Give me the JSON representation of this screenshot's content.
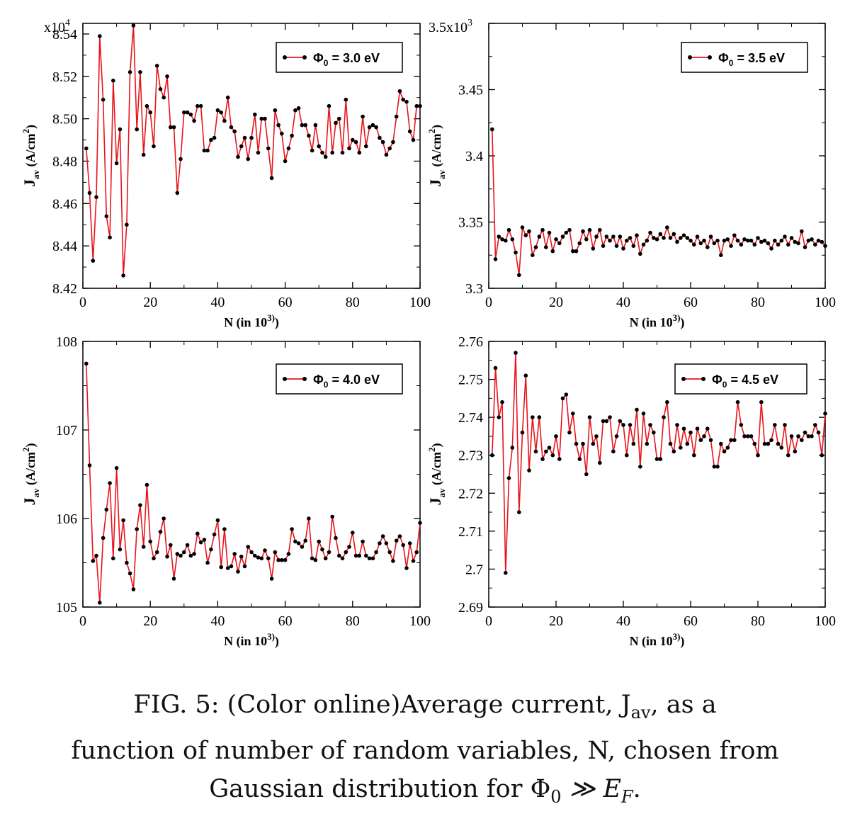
{
  "caption": {
    "line1": "FIG. 5: (Color online)Average current, J",
    "line1_sub": "av",
    "line1_end": ", as a",
    "line2": "function of number of random variables, N, chosen from",
    "line3": "Gaussian distribution for Φ",
    "line3_sub": "0",
    "line3_end": " ≫ E",
    "line3_sub2": "F",
    "line3_tail": "."
  },
  "colors": {
    "line": "#e8141b",
    "marker": "#000000",
    "frame": "#000000"
  },
  "chart_data": [
    {
      "type": "line",
      "legend": "Φ0 = 3.0 eV",
      "legend_position": "top-right",
      "xlabel": "N (in 10^3)",
      "ylabel": "Jav (A/cm^2)",
      "y_multiplier": "x10^4",
      "xlim": [
        0,
        100
      ],
      "ylim": [
        8.42,
        8.545
      ],
      "xticks": [
        "0",
        "20",
        "40",
        "60",
        "80",
        "100"
      ],
      "yticks": [
        "8.42",
        "8.44",
        "8.46",
        "8.48",
        "8.50",
        "8.52",
        "8.54"
      ],
      "x": [
        1,
        2,
        3,
        4,
        5,
        6,
        7,
        8,
        9,
        10,
        11,
        12,
        13,
        14,
        15,
        16,
        17,
        18,
        19,
        20,
        21,
        22,
        23,
        24,
        25,
        26,
        27,
        28,
        29,
        30,
        31,
        32,
        33,
        34,
        35,
        36,
        37,
        38,
        39,
        40,
        41,
        42,
        43,
        44,
        45,
        46,
        47,
        48,
        49,
        50,
        51,
        52,
        53,
        54,
        55,
        56,
        57,
        58,
        59,
        60,
        61,
        62,
        63,
        64,
        65,
        66,
        67,
        68,
        69,
        70,
        71,
        72,
        73,
        74,
        75,
        76,
        77,
        78,
        79,
        80,
        81,
        82,
        83,
        84,
        85,
        86,
        87,
        88,
        89,
        90,
        91,
        92,
        93,
        94,
        95,
        96,
        97,
        98,
        99,
        100
      ],
      "y": [
        8.486,
        8.465,
        8.433,
        8.463,
        8.539,
        8.509,
        8.454,
        8.444,
        8.518,
        8.479,
        8.495,
        8.426,
        8.45,
        8.522,
        8.544,
        8.495,
        8.522,
        8.483,
        8.506,
        8.503,
        8.487,
        8.525,
        8.514,
        8.51,
        8.52,
        8.496,
        8.496,
        8.465,
        8.481,
        8.503,
        8.503,
        8.502,
        8.499,
        8.506,
        8.506,
        8.485,
        8.485,
        8.49,
        8.491,
        8.504,
        8.503,
        8.499,
        8.51,
        8.496,
        8.494,
        8.482,
        8.487,
        8.491,
        8.481,
        8.491,
        8.502,
        8.484,
        8.5,
        8.5,
        8.486,
        8.472,
        8.504,
        8.497,
        8.493,
        8.48,
        8.486,
        8.492,
        8.504,
        8.505,
        8.497,
        8.497,
        8.492,
        8.485,
        8.497,
        8.487,
        8.484,
        8.482,
        8.506,
        8.484,
        8.498,
        8.5,
        8.484,
        8.509,
        8.486,
        8.49,
        8.489,
        8.484,
        8.501,
        8.487,
        8.496,
        8.497,
        8.496,
        8.491,
        8.489,
        8.483,
        8.486,
        8.489,
        8.501,
        8.513,
        8.509,
        8.508,
        8.494,
        8.49,
        8.506,
        8.506
      ]
    },
    {
      "type": "line",
      "legend": "Φ0 = 3.5 eV",
      "legend_position": "top-right",
      "xlabel": "N (in 10^3)",
      "ylabel": "Jav (A/cm^2)",
      "y_multiplier": "x10^3",
      "xlim": [
        0,
        100
      ],
      "ylim": [
        3.3,
        3.5
      ],
      "xticks": [
        "0",
        "20",
        "40",
        "60",
        "80",
        "100"
      ],
      "yticks": [
        "3.3",
        "3.35",
        "3.4",
        "3.45",
        "3.5"
      ],
      "x": [
        1,
        2,
        3,
        4,
        5,
        6,
        7,
        8,
        9,
        10,
        11,
        12,
        13,
        14,
        15,
        16,
        17,
        18,
        19,
        20,
        21,
        22,
        23,
        24,
        25,
        26,
        27,
        28,
        29,
        30,
        31,
        32,
        33,
        34,
        35,
        36,
        37,
        38,
        39,
        40,
        41,
        42,
        43,
        44,
        45,
        46,
        47,
        48,
        49,
        50,
        51,
        52,
        53,
        54,
        55,
        56,
        57,
        58,
        59,
        60,
        61,
        62,
        63,
        64,
        65,
        66,
        67,
        68,
        69,
        70,
        71,
        72,
        73,
        74,
        75,
        76,
        77,
        78,
        79,
        80,
        81,
        82,
        83,
        84,
        85,
        86,
        87,
        88,
        89,
        90,
        91,
        92,
        93,
        94,
        95,
        96,
        97,
        98,
        99,
        100
      ],
      "y": [
        3.42,
        3.322,
        3.339,
        3.337,
        3.336,
        3.344,
        3.337,
        3.327,
        3.31,
        3.346,
        3.34,
        3.343,
        3.325,
        3.331,
        3.339,
        3.344,
        3.331,
        3.342,
        3.328,
        3.337,
        3.334,
        3.339,
        3.342,
        3.344,
        3.328,
        3.328,
        3.334,
        3.343,
        3.337,
        3.344,
        3.33,
        3.339,
        3.344,
        3.332,
        3.339,
        3.336,
        3.339,
        3.332,
        3.339,
        3.33,
        3.336,
        3.338,
        3.332,
        3.34,
        3.326,
        3.333,
        3.336,
        3.342,
        3.338,
        3.337,
        3.341,
        3.338,
        3.346,
        3.338,
        3.341,
        3.335,
        3.338,
        3.34,
        3.338,
        3.336,
        3.333,
        3.339,
        3.334,
        3.336,
        3.331,
        3.339,
        3.334,
        3.336,
        3.325,
        3.336,
        3.337,
        3.332,
        3.34,
        3.336,
        3.333,
        3.337,
        3.336,
        3.336,
        3.333,
        3.338,
        3.335,
        3.336,
        3.334,
        3.33,
        3.336,
        3.333,
        3.336,
        3.339,
        3.333,
        3.338,
        3.335,
        3.334,
        3.343,
        3.331,
        3.336,
        3.337,
        3.333,
        3.336,
        3.335,
        3.332
      ]
    },
    {
      "type": "line",
      "legend": "Φ0 = 4.0 eV",
      "legend_position": "top-right",
      "xlabel": "N (in 10^3)",
      "ylabel": "Jav (A/cm^2)",
      "xlim": [
        0,
        100
      ],
      "ylim": [
        105,
        108
      ],
      "xticks": [
        "0",
        "20",
        "40",
        "60",
        "80",
        "100"
      ],
      "yticks": [
        "105",
        "106",
        "107",
        "108"
      ],
      "x": [
        1,
        2,
        3,
        4,
        5,
        6,
        7,
        8,
        9,
        10,
        11,
        12,
        13,
        14,
        15,
        16,
        17,
        18,
        19,
        20,
        21,
        22,
        23,
        24,
        25,
        26,
        27,
        28,
        29,
        30,
        31,
        32,
        33,
        34,
        35,
        36,
        37,
        38,
        39,
        40,
        41,
        42,
        43,
        44,
        45,
        46,
        47,
        48,
        49,
        50,
        51,
        52,
        53,
        54,
        55,
        56,
        57,
        58,
        59,
        60,
        61,
        62,
        63,
        64,
        65,
        66,
        67,
        68,
        69,
        70,
        71,
        72,
        73,
        74,
        75,
        76,
        77,
        78,
        79,
        80,
        81,
        82,
        83,
        84,
        85,
        86,
        87,
        88,
        89,
        90,
        91,
        92,
        93,
        94,
        95,
        96,
        97,
        98,
        99,
        100
      ],
      "y": [
        107.75,
        106.6,
        105.52,
        105.58,
        105.05,
        105.78,
        106.1,
        106.4,
        105.55,
        106.57,
        105.65,
        105.98,
        105.5,
        105.38,
        105.2,
        105.88,
        106.15,
        105.68,
        106.38,
        105.74,
        105.55,
        105.62,
        105.85,
        106.0,
        105.57,
        105.7,
        105.32,
        105.6,
        105.58,
        105.62,
        105.7,
        105.58,
        105.6,
        105.83,
        105.73,
        105.76,
        105.5,
        105.65,
        105.82,
        105.98,
        105.45,
        105.88,
        105.44,
        105.46,
        105.6,
        105.4,
        105.57,
        105.46,
        105.68,
        105.62,
        105.58,
        105.56,
        105.55,
        105.64,
        105.55,
        105.32,
        105.62,
        105.53,
        105.53,
        105.53,
        105.6,
        105.88,
        105.74,
        105.72,
        105.68,
        105.75,
        106.0,
        105.55,
        105.53,
        105.74,
        105.65,
        105.55,
        105.62,
        106.02,
        105.78,
        105.58,
        105.55,
        105.62,
        105.68,
        105.84,
        105.58,
        105.58,
        105.74,
        105.58,
        105.55,
        105.55,
        105.62,
        105.72,
        105.8,
        105.72,
        105.62,
        105.52,
        105.75,
        105.8,
        105.7,
        105.44,
        105.72,
        105.52,
        105.62,
        105.95
      ]
    },
    {
      "type": "line",
      "legend": "Φ0 = 4.5 eV",
      "legend_position": "top-right",
      "xlabel": "N (in 10^3)",
      "ylabel": "Jav (A/cm^2)",
      "xlim": [
        0,
        100
      ],
      "ylim": [
        2.69,
        2.76
      ],
      "xticks": [
        "0",
        "20",
        "40",
        "60",
        "80",
        "100"
      ],
      "yticks": [
        "2.69",
        "2.7",
        "2.71",
        "2.72",
        "2.73",
        "2.74",
        "2.75",
        "2.76"
      ],
      "x": [
        1,
        2,
        3,
        4,
        5,
        6,
        7,
        8,
        9,
        10,
        11,
        12,
        13,
        14,
        15,
        16,
        17,
        18,
        19,
        20,
        21,
        22,
        23,
        24,
        25,
        26,
        27,
        28,
        29,
        30,
        31,
        32,
        33,
        34,
        35,
        36,
        37,
        38,
        39,
        40,
        41,
        42,
        43,
        44,
        45,
        46,
        47,
        48,
        49,
        50,
        51,
        52,
        53,
        54,
        55,
        56,
        57,
        58,
        59,
        60,
        61,
        62,
        63,
        64,
        65,
        66,
        67,
        68,
        69,
        70,
        71,
        72,
        73,
        74,
        75,
        76,
        77,
        78,
        79,
        80,
        81,
        82,
        83,
        84,
        85,
        86,
        87,
        88,
        89,
        90,
        91,
        92,
        93,
        94,
        95,
        96,
        97,
        98,
        99,
        100
      ],
      "y": [
        2.73,
        2.753,
        2.74,
        2.744,
        2.699,
        2.724,
        2.732,
        2.757,
        2.715,
        2.736,
        2.751,
        2.726,
        2.74,
        2.731,
        2.74,
        2.729,
        2.731,
        2.732,
        2.73,
        2.735,
        2.729,
        2.745,
        2.746,
        2.736,
        2.741,
        2.733,
        2.729,
        2.733,
        2.725,
        2.74,
        2.733,
        2.735,
        2.728,
        2.739,
        2.739,
        2.74,
        2.731,
        2.735,
        2.739,
        2.738,
        2.73,
        2.738,
        2.733,
        2.742,
        2.727,
        2.741,
        2.733,
        2.738,
        2.736,
        2.729,
        2.729,
        2.74,
        2.744,
        2.733,
        2.731,
        2.738,
        2.732,
        2.737,
        2.733,
        2.736,
        2.73,
        2.737,
        2.734,
        2.735,
        2.737,
        2.734,
        2.727,
        2.727,
        2.733,
        2.731,
        2.732,
        2.734,
        2.734,
        2.744,
        2.738,
        2.735,
        2.735,
        2.735,
        2.733,
        2.73,
        2.744,
        2.733,
        2.733,
        2.734,
        2.738,
        2.733,
        2.732,
        2.738,
        2.73,
        2.735,
        2.731,
        2.735,
        2.734,
        2.736,
        2.735,
        2.735,
        2.738,
        2.736,
        2.73,
        2.741
      ]
    }
  ]
}
